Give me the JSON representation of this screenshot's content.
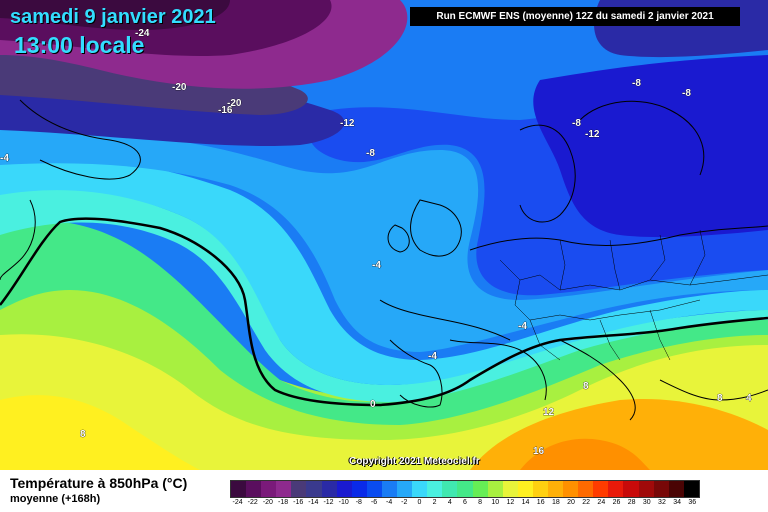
{
  "header": {
    "date": "samedi 9 janvier 2021",
    "time": "13:00 locale",
    "run": "Run ECMWF ENS (moyenne) 12Z du samedi 2 janvier 2021"
  },
  "map": {
    "copyright": "Copyright 2021 Meteociel.fr",
    "isotherm_labels": [
      "-24",
      "-20",
      "-20",
      "-16",
      "-12",
      "-12",
      "-8",
      "-8",
      "-8",
      "-8",
      "-4",
      "-4",
      "-4",
      "-4",
      "0",
      "4",
      "8",
      "8",
      "8",
      "12",
      "16"
    ],
    "zero_isotherm_color": "#000000"
  },
  "legend": {
    "title": "Température à 850hPa (°C)",
    "subtitle": "moyenne  (+168h)",
    "scale_values": [
      "-24",
      "-22",
      "-20",
      "-18",
      "-16",
      "-14",
      "-12",
      "-10",
      "-8",
      "-6",
      "-4",
      "-2",
      "0",
      "2",
      "4",
      "6",
      "8",
      "10",
      "12",
      "14",
      "16",
      "18",
      "20",
      "22",
      "24",
      "26",
      "28",
      "30",
      "32",
      "34",
      "36"
    ],
    "scale_colors": [
      "#3b0a3f",
      "#5a0e5e",
      "#7a1a7a",
      "#8e2a8e",
      "#4a3a78",
      "#3a3a8e",
      "#2a2aa6",
      "#1a1ad0",
      "#0a2ae8",
      "#0a4cf0",
      "#1a7cf4",
      "#26a8f8",
      "#3ad8fa",
      "#4af0e0",
      "#40e8b0",
      "#44e888",
      "#66ee55",
      "#a8f040",
      "#e8f43a",
      "#fff020",
      "#ffd010",
      "#ffb008",
      "#ff9000",
      "#ff6a00",
      "#ff3c00",
      "#e81a0a",
      "#c80a0a",
      "#a00a0a",
      "#780808",
      "#4a0404",
      "#000000"
    ]
  }
}
